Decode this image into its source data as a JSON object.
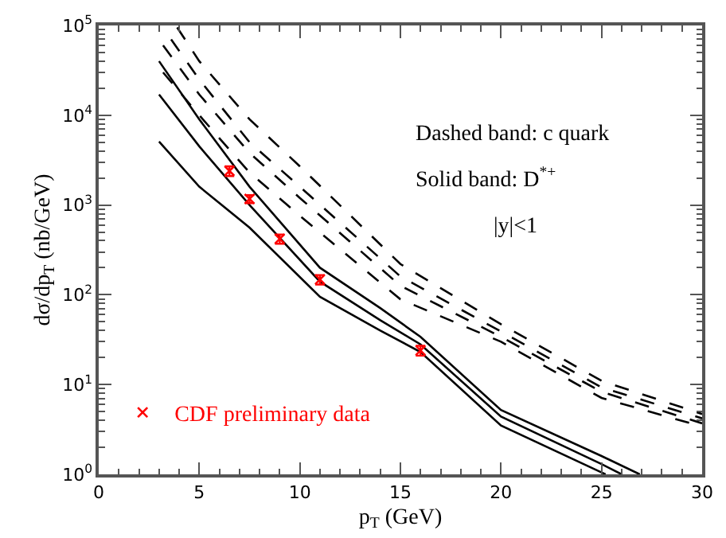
{
  "chart_data": {
    "type": "line",
    "xlabel": "p$_{T}$ (GeV)",
    "ylabel": "dσ/dp$_{T}$ (nb/GeV)",
    "xlim": [
      0,
      30
    ],
    "xticks": [
      0,
      5,
      10,
      15,
      20,
      25,
      30
    ],
    "ylim": [
      1,
      100000
    ],
    "yticks": [
      {
        "value": 1,
        "label": "10$^{0}$"
      },
      {
        "value": 10,
        "label": "10$^{1}$"
      },
      {
        "value": 100,
        "label": "10$^{2}$"
      },
      {
        "value": 1000,
        "label": "10$^{3}$"
      },
      {
        "value": 10000,
        "label": "10$^{4}$"
      },
      {
        "value": 100000,
        "label": "10$^{5}$"
      }
    ],
    "log": "y",
    "legend": "bottom left",
    "annotations": [
      "Dashed band: c quark",
      "Solid band: D$^{*+}$",
      "|y|<1"
    ],
    "series": [
      {
        "line_style": "dashed",
        "color": "#000000",
        "x": [
          3.9,
          5,
          7.5,
          10,
          15,
          20,
          25,
          30
        ],
        "values": [
          95000,
          40000,
          9000,
          2700,
          220,
          47,
          11,
          4.7
        ]
      },
      {
        "line_style": "dashed",
        "color": "#000000",
        "x": [
          3.6,
          5,
          7.5,
          10,
          15,
          20,
          25,
          30
        ],
        "values": [
          70000,
          25000,
          5000,
          1600,
          160,
          39,
          9.3,
          4.2
        ]
      },
      {
        "line_style": "dashed",
        "color": "#000000",
        "x": [
          3.2,
          5,
          7.5,
          10,
          15,
          20,
          25,
          30
        ],
        "values": [
          60000,
          17000,
          3800,
          1200,
          126,
          34,
          8.3,
          3.7
        ]
      },
      {
        "line_style": "dashed",
        "color": "#000000",
        "x": [
          3.2,
          5,
          7.5,
          10,
          15,
          20,
          25,
          30
        ],
        "values": [
          30000,
          10000,
          2300,
          760,
          89,
          30,
          7.1,
          3.4
        ]
      },
      {
        "line_style": "solid",
        "color": "#000000",
        "x": [
          3,
          5,
          7.5,
          11,
          14,
          16,
          20,
          25,
          26.9
        ],
        "values": [
          40000,
          9000,
          1600,
          200,
          71,
          34,
          5.2,
          1.6,
          1
        ]
      },
      {
        "line_style": "solid",
        "color": "#000000",
        "x": [
          3,
          5,
          7.5,
          11,
          14,
          16,
          20,
          25,
          26
        ],
        "values": [
          17000,
          4500,
          1000,
          140,
          52,
          28,
          4.4,
          1.3,
          1
        ]
      },
      {
        "line_style": "solid",
        "color": "#000000",
        "x": [
          3,
          5,
          7.5,
          11,
          14,
          16,
          20,
          25,
          25.2
        ],
        "values": [
          5100,
          1600,
          560,
          95,
          40,
          23,
          3.5,
          1.05,
          1
        ]
      },
      {
        "type": "scatter",
        "name": "CDF preliminary data",
        "marker": "cross",
        "color": "#ff0000",
        "x": [
          6.5,
          7.5,
          9,
          11,
          16
        ],
        "values": [
          2400,
          1170,
          420,
          148,
          24
        ],
        "errors": [
          300,
          120,
          50,
          18,
          3
        ]
      }
    ]
  }
}
